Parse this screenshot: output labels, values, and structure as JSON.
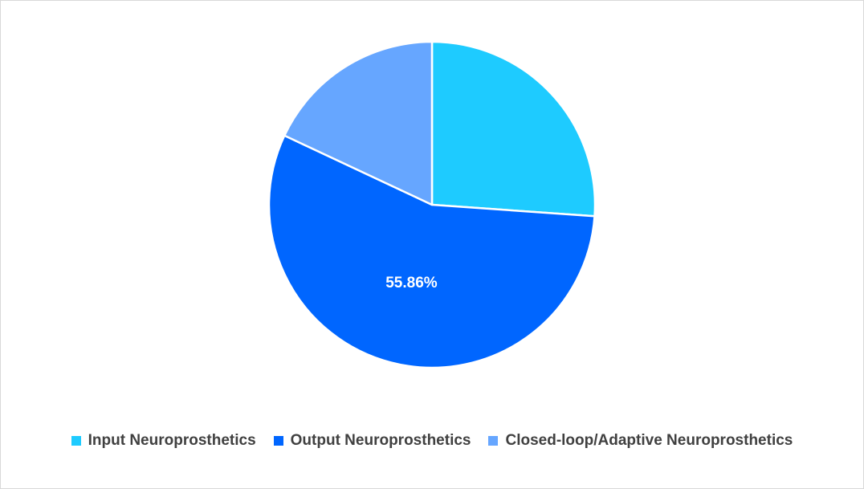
{
  "chart_data": {
    "type": "pie",
    "title": "",
    "categories": [
      "Input Neuroprosthetics",
      "Output Neuroprosthetics",
      "Closed-loop/Adaptive Neuroprosthetics"
    ],
    "values": [
      26.12,
      55.86,
      18.02
    ],
    "colors": [
      "#1ECBFF",
      "#0066FF",
      "#66A6FF"
    ],
    "data_labels": [
      "",
      "55.86%",
      ""
    ],
    "legend_position": "bottom"
  }
}
